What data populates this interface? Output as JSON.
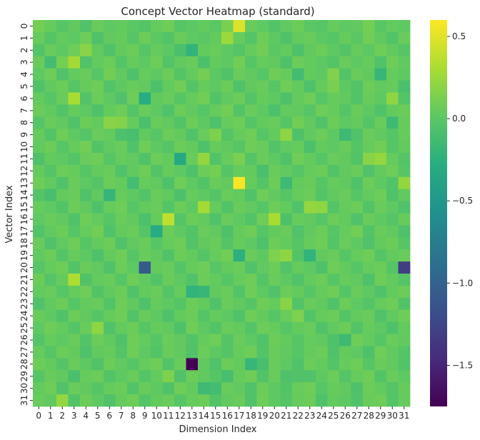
{
  "chart_data": {
    "type": "heatmap",
    "title": "Concept Vector Heatmap (standard)",
    "xlabel": "Dimension Index",
    "ylabel": "Vector Index",
    "colormap": "viridis",
    "vmin": -1.75,
    "vmax": 0.6,
    "colorbar_ticks": [
      0.5,
      0.0,
      -0.5,
      -1.0,
      -1.5
    ],
    "colorbar_tick_labels": [
      "0.5",
      "0.0",
      "−0.5",
      "−1.0",
      "−1.5"
    ],
    "x_ticks": [
      "0",
      "1",
      "2",
      "3",
      "4",
      "5",
      "6",
      "7",
      "8",
      "9",
      "10",
      "11",
      "12",
      "13",
      "14",
      "15",
      "16",
      "17",
      "18",
      "19",
      "20",
      "21",
      "22",
      "23",
      "24",
      "25",
      "26",
      "27",
      "28",
      "29",
      "30",
      "31"
    ],
    "y_ticks": [
      "0",
      "1",
      "2",
      "3",
      "4",
      "5",
      "6",
      "7",
      "8",
      "9",
      "10",
      "11",
      "12",
      "13",
      "14",
      "15",
      "16",
      "17",
      "18",
      "19",
      "20",
      "21",
      "22",
      "23",
      "24",
      "25",
      "26",
      "27",
      "28",
      "29",
      "30",
      "31"
    ],
    "values": [
      [
        0.1,
        0.05,
        -0.02,
        0.03,
        -0.05,
        0.06,
        0.02,
        0.04,
        0.0,
        -0.03,
        0.05,
        0.08,
        -0.02,
        0.01,
        0.04,
        0.0,
        0.12,
        0.48,
        0.06,
        0.02,
        -0.04,
        0.03,
        0.07,
        0.0,
        -0.02,
        0.05,
        0.02,
        0.03,
        0.1,
        -0.01,
        0.04,
        0.02
      ],
      [
        0.05,
        -0.03,
        0.04,
        0.02,
        0.08,
        -0.06,
        0.03,
        0.05,
        -0.02,
        0.07,
        0.01,
        -0.04,
        0.06,
        0.02,
        0.0,
        0.04,
        0.25,
        0.05,
        -0.03,
        0.08,
        0.02,
        -0.05,
        0.04,
        0.06,
        0.01,
        -0.02,
        0.05,
        0.0,
        0.09,
        0.03,
        -0.04,
        0.06
      ],
      [
        -0.04,
        0.06,
        0.02,
        0.08,
        0.18,
        0.03,
        -0.05,
        0.04,
        0.07,
        -0.02,
        0.05,
        0.01,
        -0.08,
        -0.22,
        0.04,
        0.06,
        0.02,
        -0.03,
        0.05,
        0.09,
        0.0,
        0.04,
        -0.06,
        0.03,
        0.07,
        0.02,
        -0.04,
        0.05,
        0.01,
        0.08,
        0.03,
        -0.02
      ],
      [
        0.06,
        -0.12,
        0.1,
        0.28,
        -0.05,
        0.04,
        0.07,
        -0.03,
        0.05,
        0.02,
        0.08,
        -0.04,
        0.03,
        0.06,
        -0.07,
        0.04,
        0.02,
        0.09,
        -0.02,
        0.05,
        0.03,
        -0.06,
        0.07,
        0.04,
        0.01,
        -0.03,
        0.06,
        0.02,
        0.05,
        -0.05,
        0.08,
        0.03
      ],
      [
        0.02,
        0.08,
        -0.05,
        0.04,
        0.06,
        -0.02,
        0.09,
        0.03,
        -0.06,
        0.05,
        0.02,
        0.07,
        -0.03,
        0.04,
        0.1,
        0.01,
        -0.05,
        0.06,
        0.03,
        -0.02,
        0.08,
        0.05,
        -0.12,
        0.04,
        0.02,
        0.15,
        -0.04,
        0.06,
        0.03,
        -0.18,
        0.05,
        0.02
      ],
      [
        -0.05,
        0.03,
        0.07,
        -0.02,
        0.05,
        0.08,
        -0.04,
        0.02,
        0.06,
        0.03,
        -0.07,
        0.04,
        0.09,
        -0.03,
        0.05,
        0.02,
        0.07,
        -0.05,
        0.03,
        0.06,
        -0.02,
        0.08,
        0.04,
        -0.06,
        0.05,
        0.12,
        0.02,
        -0.04,
        0.07,
        0.03,
        0.05,
        -0.08
      ],
      [
        0.04,
        -0.02,
        0.06,
        0.3,
        -0.04,
        0.07,
        0.02,
        -0.05,
        0.08,
        -0.28,
        0.03,
        0.06,
        -0.02,
        0.05,
        0.09,
        -0.04,
        0.03,
        0.07,
        -0.03,
        0.05,
        0.02,
        -0.06,
        0.04,
        0.08,
        -0.02,
        0.05,
        0.03,
        -0.04,
        0.06,
        0.02,
        0.2,
        -0.03
      ],
      [
        0.07,
        0.03,
        -0.04,
        0.05,
        0.02,
        -0.06,
        0.04,
        0.08,
        -0.03,
        0.06,
        0.02,
        -0.05,
        0.07,
        0.03,
        -0.02,
        0.05,
        0.09,
        -0.04,
        0.06,
        0.02,
        -0.07,
        0.04,
        0.03,
        -0.02,
        0.08,
        0.05,
        -0.03,
        0.06,
        0.02,
        -0.05,
        0.04,
        0.07
      ],
      [
        -0.02,
        0.06,
        0.03,
        -0.05,
        0.07,
        0.04,
        0.18,
        0.16,
        0.05,
        -0.08,
        0.06,
        0.03,
        -0.04,
        0.07,
        0.02,
        -0.06,
        0.05,
        0.08,
        -0.03,
        0.04,
        0.06,
        -0.02,
        0.09,
        0.03,
        -0.05,
        0.07,
        0.02,
        0.04,
        -0.03,
        0.06,
        -0.14,
        0.05
      ],
      [
        0.05,
        -0.04,
        0.08,
        0.02,
        -0.03,
        0.06,
        0.04,
        -0.07,
        -0.1,
        0.03,
        -0.02,
        0.07,
        0.04,
        -0.05,
        0.06,
        0.14,
        -0.03,
        0.05,
        0.08,
        -0.02,
        0.04,
        0.2,
        -0.06,
        0.03,
        0.07,
        0.02,
        -0.15,
        -0.05,
        0.06,
        0.03,
        -0.02,
        0.05
      ],
      [
        0.03,
        0.07,
        -0.02,
        0.05,
        0.09,
        -0.04,
        0.03,
        0.06,
        -0.05,
        0.08,
        0.02,
        -0.03,
        0.07,
        0.04,
        -0.06,
        0.05,
        0.03,
        -0.02,
        0.08,
        0.06,
        -0.04,
        0.03,
        0.05,
        -0.07,
        0.04,
        0.02,
        0.06,
        -0.03,
        0.05,
        0.09,
        -0.02,
        0.04
      ],
      [
        -0.06,
        0.04,
        0.02,
        -0.03,
        0.06,
        0.08,
        -0.02,
        0.05,
        0.03,
        -0.05,
        0.07,
        0.04,
        -0.32,
        0.06,
        0.22,
        -0.04,
        0.05,
        0.12,
        -0.03,
        0.06,
        0.02,
        -0.05,
        0.08,
        0.04,
        -0.02,
        0.06,
        0.03,
        -0.04,
        0.18,
        0.22,
        0.05,
        -0.03
      ],
      [
        0.04,
        -0.03,
        0.07,
        0.05,
        -0.02,
        0.04,
        0.06,
        -0.05,
        0.03,
        0.08,
        -0.04,
        0.05,
        0.02,
        -0.06,
        0.07,
        0.1,
        -0.03,
        0.05,
        0.04,
        -0.08,
        0.06,
        0.03,
        -0.02,
        0.05,
        0.07,
        -0.04,
        0.03,
        0.06,
        -0.05,
        0.04,
        0.08,
        -0.02
      ],
      [
        0.08,
        0.03,
        -0.05,
        0.06,
        0.02,
        -0.03,
        0.07,
        0.04,
        -0.12,
        0.05,
        0.03,
        -0.06,
        0.08,
        0.02,
        -0.04,
        0.06,
        0.03,
        0.58,
        0.05,
        -0.03,
        0.07,
        -0.15,
        0.04,
        0.06,
        -0.02,
        0.05,
        0.03,
        -0.05,
        0.07,
        0.02,
        -0.04,
        0.22
      ],
      [
        -0.03,
        -0.1,
        0.04,
        0.06,
        -0.05,
        0.03,
        -0.2,
        0.05,
        0.02,
        -0.04,
        0.06,
        0.03,
        -0.07,
        0.05,
        0.02,
        -0.03,
        0.06,
        0.04,
        -0.05,
        0.08,
        0.03,
        -0.02,
        0.05,
        0.07,
        -0.04,
        0.03,
        0.06,
        -0.02,
        0.04,
        0.08,
        -0.05,
        0.03
      ],
      [
        0.05,
        0.02,
        -0.04,
        0.07,
        0.03,
        -0.06,
        0.05,
        0.08,
        -0.02,
        0.04,
        0.06,
        -0.03,
        0.07,
        0.02,
        0.28,
        0.05,
        -0.04,
        0.06,
        0.03,
        -0.02,
        0.08,
        0.04,
        -0.05,
        0.22,
        0.2,
        -0.03,
        0.05,
        0.07,
        -0.04,
        0.06,
        0.02,
        -0.05
      ],
      [
        0.02,
        0.06,
        0.03,
        -0.05,
        0.08,
        0.04,
        -0.02,
        0.06,
        0.03,
        -0.07,
        0.05,
        0.38,
        -0.03,
        0.07,
        0.04,
        -0.05,
        0.06,
        0.02,
        -0.04,
        0.08,
        0.3,
        -0.06,
        0.05,
        0.03,
        -0.02,
        0.07,
        0.04,
        -0.05,
        0.06,
        0.02,
        -0.03,
        0.05
      ],
      [
        -0.04,
        0.03,
        0.07,
        -0.02,
        0.05,
        0.09,
        -0.05,
        0.04,
        0.06,
        -0.03,
        -0.3,
        0.07,
        0.02,
        -0.04,
        0.06,
        0.03,
        -0.06,
        0.05,
        0.08,
        -0.02,
        0.04,
        0.06,
        -0.05,
        0.03,
        0.07,
        -0.02,
        0.05,
        0.09,
        -0.04,
        0.06,
        0.03,
        -0.06
      ],
      [
        0.06,
        -0.05,
        0.03,
        0.08,
        -0.02,
        0.04,
        0.07,
        -0.05,
        0.03,
        0.06,
        -0.02,
        0.05,
        0.08,
        -0.04,
        0.03,
        0.06,
        -0.03,
        0.05,
        0.02,
        -0.06,
        0.07,
        0.04,
        -0.02,
        0.05,
        0.08,
        -0.03,
        0.06,
        0.02,
        -0.05,
        0.04,
        0.07,
        -0.02
      ],
      [
        0.03,
        0.07,
        -0.03,
        0.05,
        0.02,
        -0.06,
        0.04,
        0.08,
        -0.02,
        0.06,
        0.03,
        -0.05,
        0.07,
        0.04,
        -0.03,
        0.05,
        0.09,
        -0.25,
        0.06,
        0.02,
        0.14,
        0.2,
        -0.04,
        -0.22,
        0.03,
        0.06,
        -0.02,
        0.05,
        0.08,
        -0.03,
        0.04,
        0.06
      ],
      [
        -0.02,
        0.05,
        0.08,
        -0.04,
        0.06,
        0.03,
        -0.05,
        0.07,
        0.02,
        -1.08,
        0.04,
        0.06,
        -0.03,
        0.05,
        0.08,
        -0.02,
        0.04,
        0.06,
        -0.05,
        0.03,
        0.07,
        -0.04,
        0.05,
        0.02,
        -0.06,
        0.08,
        0.04,
        -0.02,
        0.05,
        0.07,
        -0.03,
        -1.32
      ],
      [
        0.07,
        -0.03,
        0.05,
        0.32,
        -0.05,
        0.04,
        0.06,
        -0.02,
        0.08,
        0.03,
        -0.04,
        0.06,
        0.02,
        -0.05,
        0.07,
        0.04,
        -0.02,
        0.05,
        0.08,
        -0.03,
        0.06,
        0.02,
        -0.05,
        0.04,
        0.07,
        -0.02,
        0.05,
        0.03,
        -0.06,
        0.08,
        0.04,
        -0.03
      ],
      [
        0.04,
        0.06,
        -0.02,
        0.05,
        0.08,
        -0.04,
        0.03,
        0.07,
        -0.05,
        0.04,
        0.06,
        -0.03,
        0.05,
        -0.22,
        -0.18,
        0.03,
        0.06,
        -0.04,
        0.08,
        0.02,
        -0.05,
        0.07,
        0.04,
        -0.02,
        0.05,
        0.08,
        -0.03,
        0.06,
        0.02,
        -0.05,
        0.04,
        0.07
      ],
      [
        -0.05,
        0.03,
        0.07,
        -0.02,
        0.04,
        0.06,
        -0.04,
        0.08,
        0.03,
        -0.06,
        0.05,
        0.02,
        -0.03,
        0.07,
        0.04,
        -0.05,
        0.06,
        0.03,
        -0.02,
        0.08,
        0.05,
        0.18,
        -0.04,
        0.06,
        0.03,
        -0.05,
        0.07,
        0.02,
        -0.03,
        0.05,
        0.08,
        -0.04
      ],
      [
        0.06,
        0.02,
        -0.05,
        0.07,
        0.03,
        -0.02,
        0.05,
        0.08,
        -0.04,
        0.06,
        0.02,
        -0.06,
        0.04,
        0.07,
        -0.03,
        0.05,
        0.02,
        -0.05,
        0.08,
        0.04,
        -0.02,
        0.06,
        0.14,
        -0.04,
        0.05,
        0.07,
        -0.03,
        0.04,
        0.06,
        -0.05,
        0.03,
        0.08
      ],
      [
        0.02,
        0.08,
        0.04,
        -0.03,
        0.06,
        0.2,
        -0.05,
        0.04,
        0.07,
        -0.02,
        0.05,
        0.03,
        -0.06,
        0.08,
        0.02,
        -0.04,
        0.06,
        0.04,
        -0.03,
        0.07,
        0.05,
        -0.02,
        0.04,
        0.06,
        -0.05,
        0.03,
        0.07,
        -0.04,
        0.05,
        0.02,
        -0.06,
        0.04
      ],
      [
        -0.03,
        0.05,
        0.02,
        0.06,
        -0.04,
        0.07,
        0.03,
        -0.05,
        0.08,
        0.04,
        -0.02,
        0.06,
        0.03,
        -0.04,
        0.05,
        0.08,
        -0.03,
        0.06,
        0.02,
        -0.05,
        0.07,
        0.04,
        -0.02,
        0.05,
        0.03,
        -0.06,
        -0.15,
        0.08,
        0.04,
        -0.02,
        0.06,
        0.03
      ],
      [
        0.05,
        -0.02,
        0.07,
        0.04,
        -0.06,
        0.03,
        0.05,
        -0.03,
        0.08,
        0.02,
        -0.04,
        0.06,
        0.03,
        -0.05,
        0.07,
        0.02,
        -0.03,
        0.05,
        0.08,
        -0.04,
        0.06,
        0.03,
        -0.02,
        0.05,
        0.07,
        -0.05,
        0.04,
        0.02,
        -0.06,
        0.08,
        0.03,
        -0.03
      ],
      [
        0.08,
        0.04,
        -0.03,
        0.06,
        0.02,
        -0.05,
        0.07,
        0.03,
        -0.02,
        0.05,
        0.08,
        -0.04,
        0.06,
        -1.75,
        0.03,
        -0.05,
        0.07,
        0.04,
        -0.18,
        -0.1,
        0.06,
        0.02,
        -0.05,
        0.07,
        0.04,
        -0.03,
        0.05,
        0.08,
        -0.02,
        0.06,
        0.03,
        -0.04
      ],
      [
        -0.02,
        0.06,
        0.03,
        -0.08,
        0.05,
        0.07,
        -0.04,
        0.02,
        0.06,
        -0.03,
        0.04,
        0.14,
        -0.05,
        0.07,
        0.03,
        -0.02,
        -0.1,
        0.05,
        0.08,
        -0.04,
        0.06,
        -0.06,
        -0.05,
        -0.05,
        0.02,
        0.07,
        -0.03,
        0.05,
        0.08,
        -0.04,
        0.06,
        0.02
      ],
      [
        0.04,
        0.08,
        -0.05,
        0.06,
        0.03,
        -0.02,
        0.05,
        0.07,
        -0.04,
        0.06,
        0.02,
        -0.05,
        0.08,
        0.04,
        -0.15,
        -0.12,
        0.06,
        0.03,
        -0.05,
        0.07,
        0.02,
        -0.04,
        0.06,
        0.08,
        -0.02,
        0.05,
        0.03,
        -0.06,
        0.07,
        0.04,
        -0.03,
        0.05
      ],
      [
        0.06,
        0.03,
        0.22,
        -0.04,
        0.07,
        0.02,
        -0.05,
        0.05,
        0.08,
        -0.03,
        0.04,
        0.06,
        -0.02,
        0.05,
        0.07,
        -0.04,
        0.03,
        0.06,
        -0.05,
        0.08,
        0.02,
        -0.03,
        0.05,
        0.07,
        -0.06,
        0.04,
        0.02,
        -0.05,
        0.06,
        0.08,
        -0.03,
        0.05
      ]
    ]
  }
}
